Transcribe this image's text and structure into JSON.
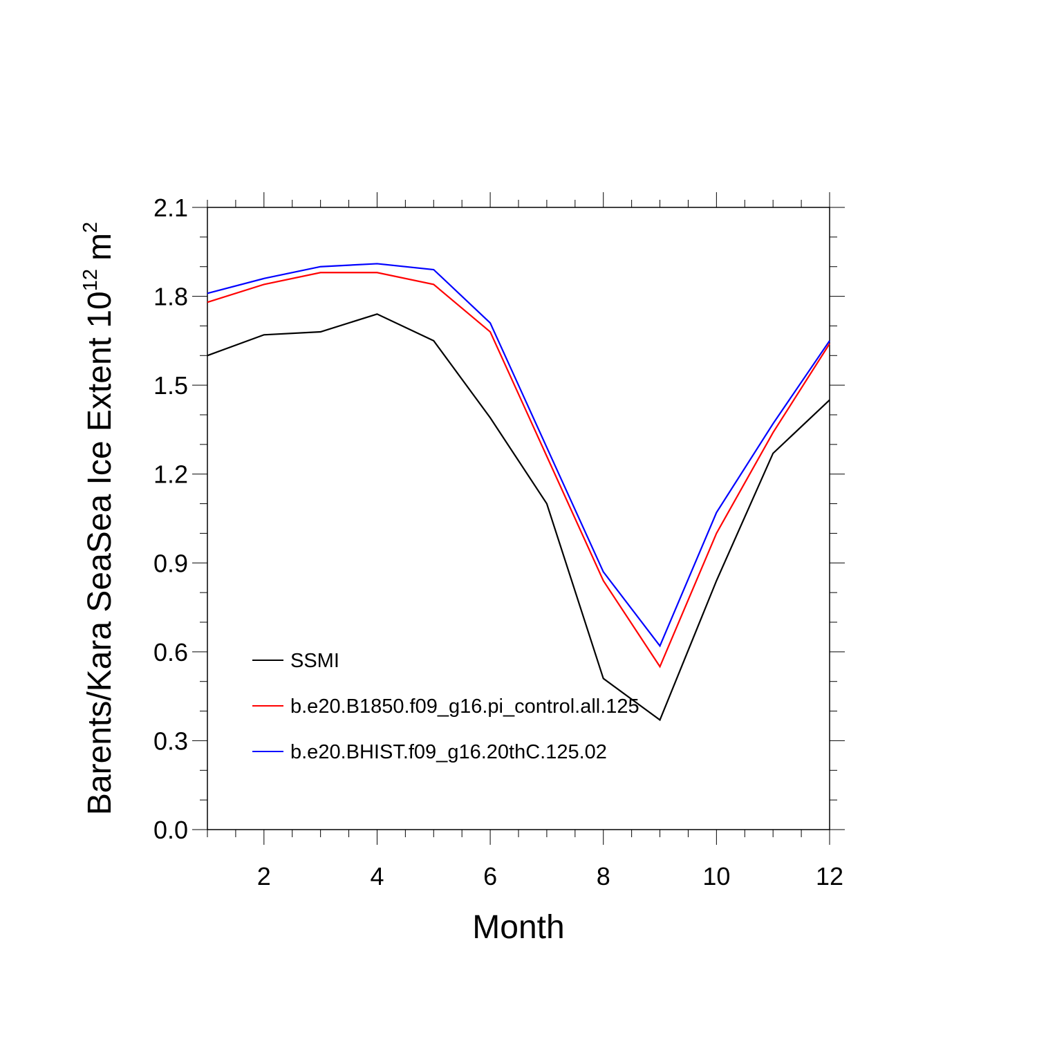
{
  "chart_data": {
    "type": "line",
    "xlabel": "Month",
    "ylabel": "Barents/Kara SeaSea Ice Extent 10",
    "ylabel_sup": "12",
    "ylabel_unit": "m",
    "ylabel_unit_sup": "2",
    "xlim": [
      1,
      12
    ],
    "ylim": [
      0,
      2.1
    ],
    "x_major_ticks": [
      2,
      4,
      6,
      8,
      10,
      12
    ],
    "y_major_ticks": [
      0.0,
      0.3,
      0.6,
      0.9,
      1.2,
      1.5,
      1.8,
      2.1
    ],
    "x_tick_labels": [
      "2",
      "4",
      "6",
      "8",
      "10",
      "12"
    ],
    "y_tick_labels": [
      "0.0",
      "0.3",
      "0.6",
      "0.9",
      "1.2",
      "1.5",
      "1.8",
      "2.1"
    ],
    "grid": false,
    "legend_position": "bottom-left",
    "x": [
      1,
      2,
      3,
      4,
      5,
      6,
      7,
      8,
      9,
      10,
      11,
      12
    ],
    "series": [
      {
        "name": "SSMI",
        "color": "#000000",
        "values": [
          1.6,
          1.67,
          1.68,
          1.74,
          1.65,
          1.39,
          1.1,
          0.51,
          0.37,
          0.84,
          1.27,
          1.45
        ]
      },
      {
        "name": "b.e20.B1850.f09_g16.pi_control.all.125",
        "color": "#ff0000",
        "values": [
          1.78,
          1.84,
          1.88,
          1.88,
          1.84,
          1.68,
          1.26,
          0.84,
          0.55,
          1.0,
          1.34,
          1.64
        ]
      },
      {
        "name": "b.e20.BHIST.f09_g16.20thC.125.02",
        "color": "#0000ff",
        "values": [
          1.81,
          1.86,
          1.9,
          1.91,
          1.89,
          1.71,
          1.29,
          0.87,
          0.62,
          1.07,
          1.37,
          1.65
        ]
      }
    ]
  }
}
